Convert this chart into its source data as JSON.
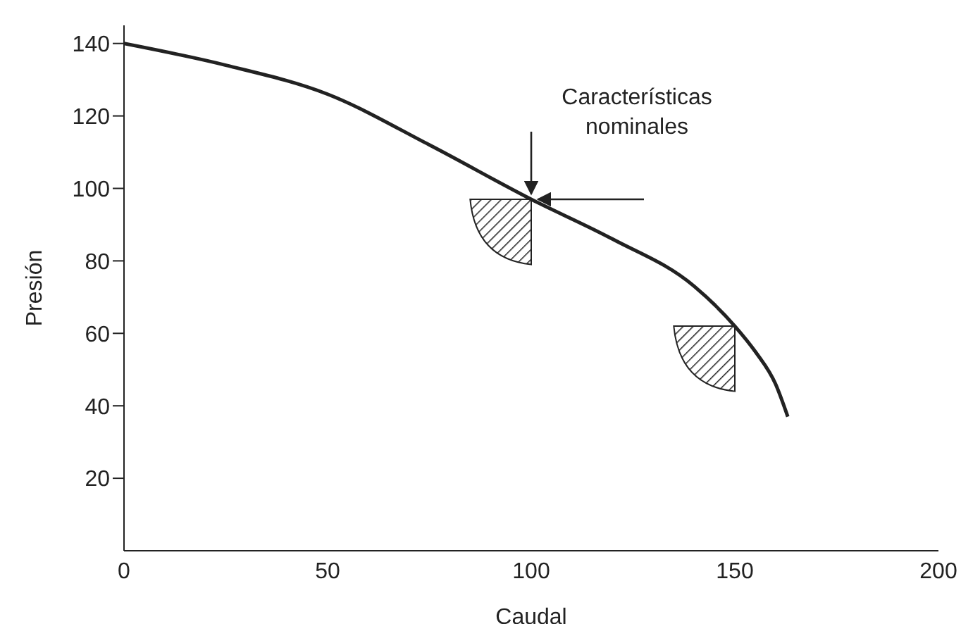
{
  "chart_data": {
    "type": "line",
    "xlabel": "Caudal",
    "ylabel": "Presión",
    "x": [
      0,
      25,
      50,
      75,
      100,
      120,
      140,
      150,
      155,
      160,
      163
    ],
    "series": [
      {
        "color": "#222222",
        "values": [
          140,
          134,
          126,
          112,
          97,
          86,
          73,
          62,
          55,
          46,
          37
        ]
      }
    ],
    "xlim": [
      0,
      200
    ],
    "xticks": [
      0,
      50,
      100,
      150,
      200
    ],
    "ylim": [
      0,
      145
    ],
    "yticks": [
      20,
      40,
      60,
      80,
      100,
      120,
      140
    ],
    "marker": "none",
    "line_style": "solid",
    "annotations": [
      {
        "text": "Características nominales",
        "x": 100,
        "y": 97
      }
    ]
  }
}
